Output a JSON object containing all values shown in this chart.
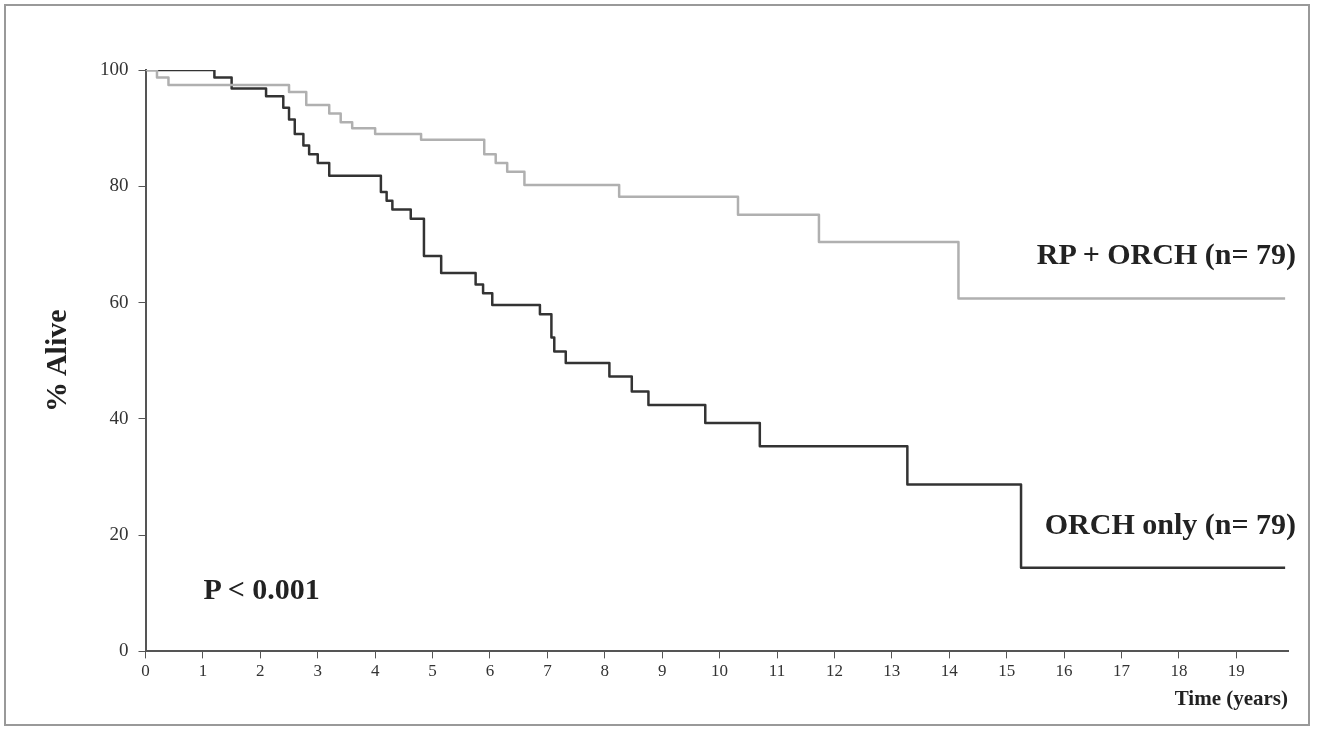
{
  "chart_data": {
    "type": "step",
    "xlabel": "Time (years)",
    "ylabel": "% Alive",
    "xlim": [
      0,
      19.9
    ],
    "ylim": [
      0,
      100
    ],
    "xticks": [
      0,
      1,
      2,
      3,
      4,
      5,
      6,
      7,
      8,
      9,
      10,
      11,
      12,
      13,
      14,
      15,
      16,
      17,
      18,
      19
    ],
    "yticks": [
      0,
      20,
      40,
      60,
      80,
      100
    ],
    "grid": false,
    "legend": false,
    "marker": "none",
    "line_style": "solid",
    "annotations": [
      "P < 0.001"
    ],
    "series": [
      {
        "name": "RP + ORCH (n= 79)",
        "color": "#b0b0b0",
        "x": [
          0,
          0.2,
          0.4,
          2.5,
          2.8,
          3.2,
          3.4,
          3.6,
          4.0,
          4.8,
          5.9,
          6.1,
          6.3,
          6.6,
          8.25,
          10.32,
          11.73,
          14.16,
          19.85
        ],
        "values": [
          100,
          98.7,
          97.4,
          96.2,
          94,
          92.5,
          91,
          90,
          89,
          88,
          85.5,
          84,
          82.5,
          80.2,
          78.2,
          75.1,
          70.4,
          60.7,
          60.7
        ]
      },
      {
        "name": "ORCH only (n= 79)",
        "color": "#333333",
        "x": [
          0,
          1.2,
          1.5,
          2.1,
          2.4,
          2.5,
          2.6,
          2.75,
          2.85,
          3.0,
          3.2,
          4.1,
          4.2,
          4.3,
          4.62,
          4.85,
          5.15,
          5.75,
          5.88,
          6.04,
          6.87,
          7.07,
          7.12,
          7.32,
          8.08,
          8.47,
          8.76,
          9.75,
          10.7,
          13.27,
          15.25,
          19.85
        ],
        "values": [
          100,
          98.7,
          96.8,
          95.5,
          93.5,
          91.5,
          89,
          87,
          85.5,
          84,
          81.8,
          79,
          77.5,
          76,
          74.4,
          68,
          65.1,
          63.1,
          61.6,
          59.6,
          58,
          54,
          51.6,
          49.6,
          47.3,
          44.7,
          42.4,
          39.3,
          35.3,
          28.7,
          14.4,
          14.4
        ]
      }
    ]
  }
}
